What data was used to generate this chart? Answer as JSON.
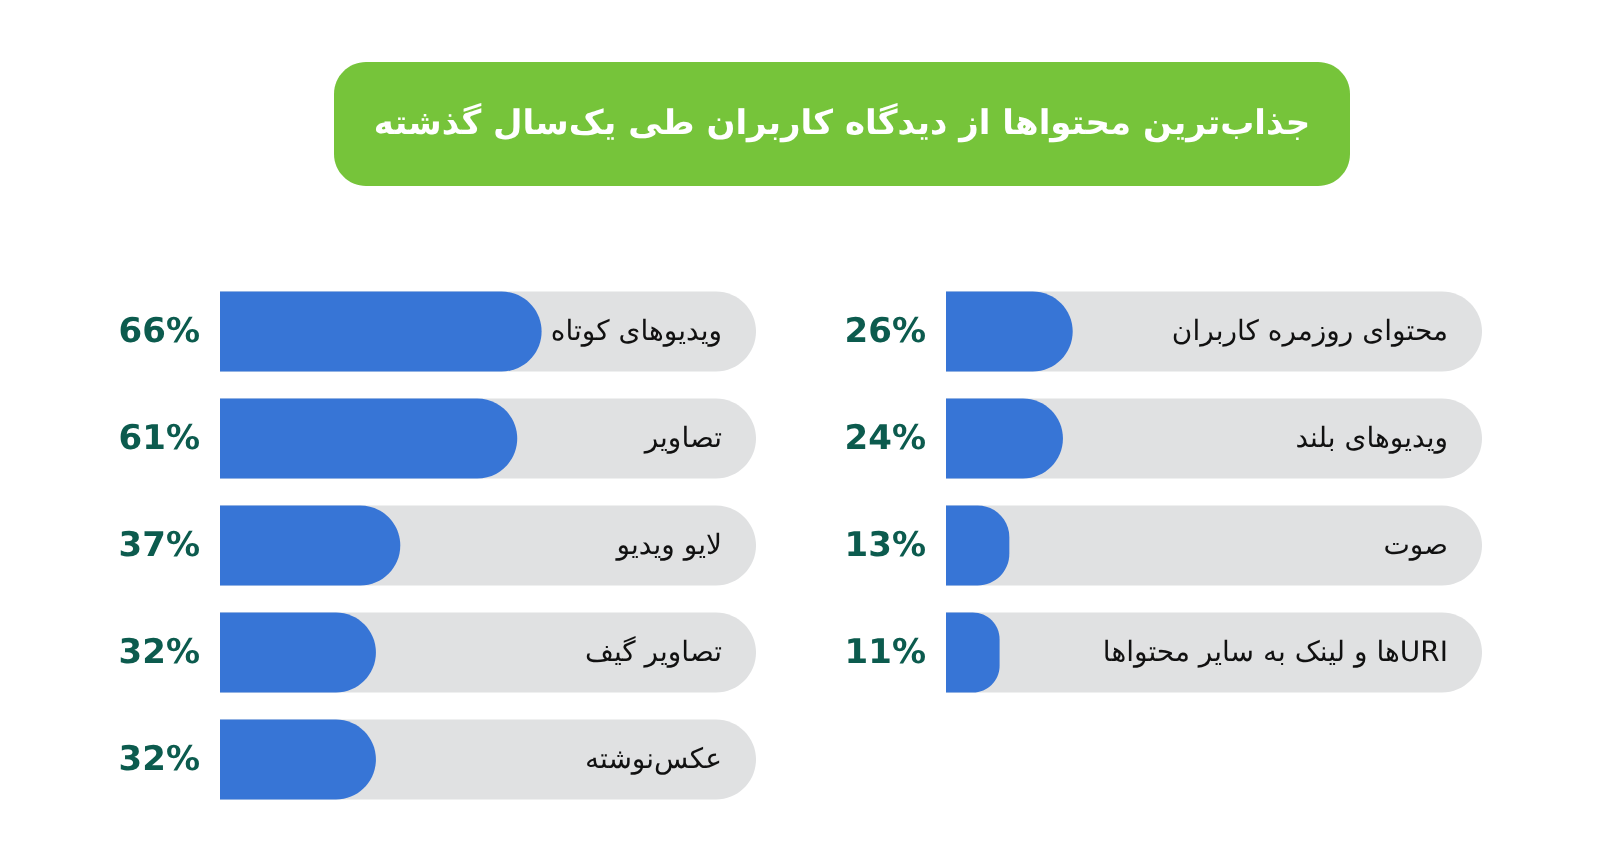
{
  "chart_data": [
    {
      "type": "bar",
      "orientation": "horizontal",
      "title": "جذاب‌ترین محتواها از دیدگاه کاربران طی یک‌سال گذشته",
      "categories": [
        "ویدیوهای کوتاه",
        "تصاویر",
        "لایو ویدیو",
        "تصاویر گیف",
        "عکس‌نوشته"
      ],
      "values": [
        66,
        61,
        37,
        32,
        32
      ],
      "value_labels": [
        "66%",
        "61%",
        "37%",
        "32%",
        "32%"
      ],
      "color": "#3775d6",
      "xlim": [
        0,
        110
      ],
      "tick_labels": "y"
    },
    {
      "type": "bar",
      "orientation": "horizontal",
      "categories": [
        "محتوای روزمره کاربران",
        "ویدیوهای بلند",
        "صوت",
        "URIها و لینک به سایر محتواها"
      ],
      "values": [
        26,
        24,
        13,
        11
      ],
      "value_labels": [
        "26%",
        "24%",
        "13%",
        "11%"
      ],
      "color": "#3775d6",
      "xlim": [
        0,
        110
      ],
      "tick_labels": "y"
    }
  ]
}
